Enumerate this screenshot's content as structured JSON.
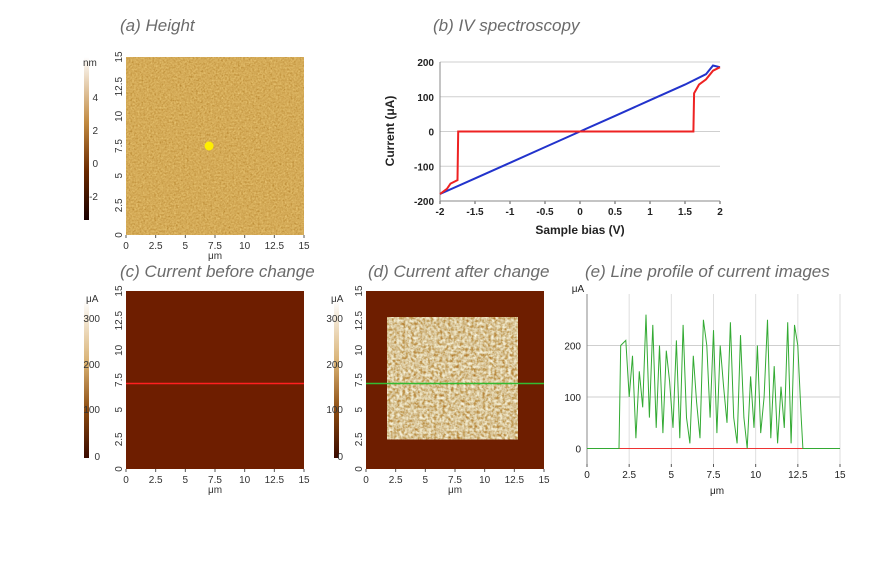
{
  "panels": {
    "a": {
      "title": "(a) Height",
      "colorbar_unit": "nm",
      "colorbar_ticks": [
        "4",
        "2",
        "0",
        "-2"
      ],
      "xlabel": "μm",
      "x_ticks": [
        "0",
        "2.5",
        "5",
        "7.5",
        "10",
        "12.5",
        "15"
      ],
      "y_ticks": [
        "15",
        "12.5",
        "10",
        "7.5",
        "5",
        "2.5",
        "0"
      ],
      "marker_position_um": [
        7,
        7.5
      ],
      "marker_color": "#ffee00"
    },
    "c": {
      "title": "(c) Current before change",
      "colorbar_unit": "μA",
      "colorbar_ticks": [
        "300",
        "200",
        "100",
        "0"
      ],
      "xlabel": "μm",
      "x_ticks": [
        "0",
        "2.5",
        "5",
        "7.5",
        "10",
        "12.5",
        "15"
      ],
      "y_ticks": [
        "15",
        "12.5",
        "10",
        "7.5",
        "5",
        "2.5",
        "0"
      ],
      "line_y_um": 7.2,
      "line_color": "#ff2020"
    },
    "d": {
      "title": "(d) Current after change",
      "colorbar_unit": "μA",
      "colorbar_ticks": [
        "300",
        "200",
        "100",
        "0"
      ],
      "xlabel": "μm",
      "x_ticks": [
        "0",
        "2.5",
        "5",
        "7.5",
        "10",
        "12.5",
        "15"
      ],
      "y_ticks": [
        "15",
        "12.5",
        "10",
        "7.5",
        "5",
        "2.5",
        "0"
      ],
      "written_region_um": {
        "x": [
          1.8,
          12.8
        ],
        "y": [
          2.5,
          12.8
        ]
      },
      "line_y_um": 7.2,
      "line_color": "#33bb33"
    }
  },
  "chart_data": [
    {
      "type": "line",
      "panel": "b",
      "title": "(b) IV spectroscopy",
      "xlabel": "Sample bias (V)",
      "ylabel": "Current (μA)",
      "xlim": [
        -2,
        2
      ],
      "ylim": [
        -200,
        200
      ],
      "x_ticks": [
        "-2",
        "-1.5",
        "-1",
        "-0.5",
        "0",
        "0.5",
        "1",
        "1.5",
        "2"
      ],
      "y_ticks": [
        "200",
        "100",
        "0",
        "-100",
        "-200"
      ],
      "grid": true,
      "series": [
        {
          "color": "#2233cc",
          "x": [
            -2,
            -1.5,
            -1,
            -0.5,
            0,
            0.5,
            1,
            1.5,
            1.8,
            1.9,
            2
          ],
          "y": [
            -180,
            -135,
            -90,
            -45,
            0,
            45,
            90,
            135,
            165,
            190,
            185
          ]
        },
        {
          "color": "#ee2222",
          "x": [
            -2,
            -1.9,
            -1.85,
            -1.75,
            -1.74,
            -1.7,
            -1.5,
            -1,
            -0.5,
            0,
            0.5,
            1,
            1.5,
            1.62,
            1.63,
            1.7,
            1.8,
            1.9,
            2
          ],
          "y": [
            -180,
            -165,
            -150,
            -140,
            0,
            0,
            0,
            0,
            0,
            0,
            0,
            0,
            0,
            0,
            110,
            135,
            150,
            175,
            185
          ]
        }
      ]
    },
    {
      "type": "line",
      "panel": "e",
      "title": "(e) Line profile of current images",
      "ylabel": "μA",
      "xlabel": "μm",
      "xlim": [
        0,
        15
      ],
      "ylim": [
        -30,
        300
      ],
      "x_ticks": [
        "0",
        "2.5",
        "5",
        "7.5",
        "10",
        "12.5",
        "15"
      ],
      "y_ticks": [
        "200",
        "100",
        "0"
      ],
      "grid": true,
      "series": [
        {
          "color": "#ee3333",
          "x": [
            0,
            15
          ],
          "y": [
            0,
            0
          ]
        },
        {
          "color": "#33aa33",
          "x": [
            0,
            1.9,
            2.0,
            2.3,
            2.5,
            2.7,
            2.9,
            3.1,
            3.3,
            3.5,
            3.7,
            3.9,
            4.1,
            4.3,
            4.5,
            4.7,
            4.9,
            5.1,
            5.3,
            5.5,
            5.7,
            5.9,
            6.1,
            6.3,
            6.5,
            6.7,
            6.9,
            7.1,
            7.3,
            7.5,
            7.7,
            7.9,
            8.1,
            8.3,
            8.5,
            8.7,
            8.9,
            9.1,
            9.3,
            9.5,
            9.7,
            9.9,
            10.1,
            10.3,
            10.5,
            10.7,
            10.9,
            11.1,
            11.3,
            11.5,
            11.7,
            11.9,
            12.1,
            12.3,
            12.5,
            12.7,
            12.8,
            15
          ],
          "y": [
            0,
            0,
            200,
            210,
            100,
            180,
            20,
            150,
            80,
            260,
            60,
            240,
            40,
            200,
            30,
            190,
            130,
            40,
            210,
            20,
            240,
            60,
            10,
            180,
            90,
            20,
            250,
            200,
            60,
            230,
            30,
            200,
            120,
            50,
            245,
            60,
            10,
            220,
            60,
            0,
            140,
            40,
            200,
            30,
            100,
            250,
            20,
            160,
            10,
            120,
            40,
            245,
            10,
            240,
            200,
            60,
            0,
            0
          ]
        }
      ]
    }
  ]
}
